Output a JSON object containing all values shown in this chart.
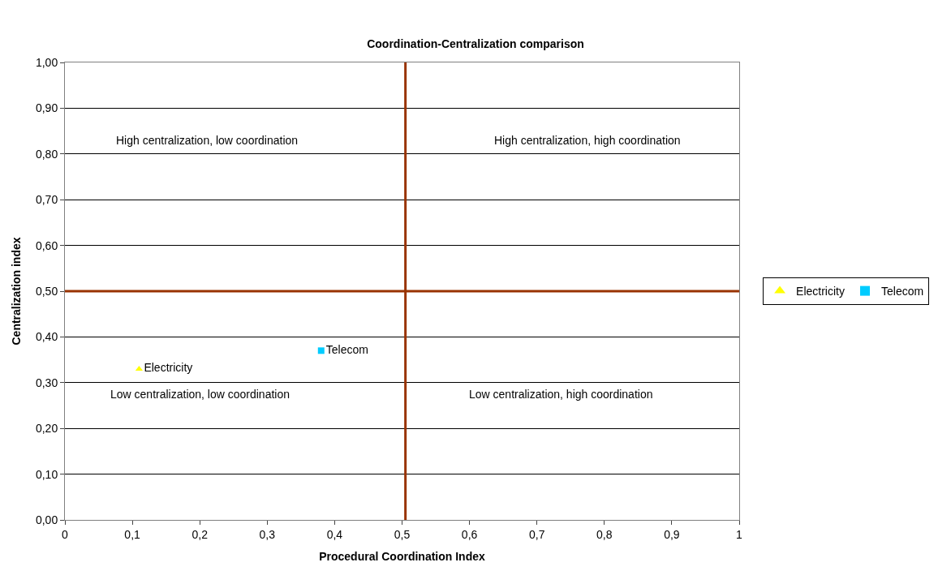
{
  "chart_data": {
    "type": "scatter",
    "title": "Coordination-Centralization comparison",
    "xlabel": "Procedural Coordination Index",
    "ylabel": "Centralization index",
    "xlim": [
      0,
      1
    ],
    "xticks": [
      0,
      {
        "value": 0.1,
        "label": "0,1"
      },
      {
        "value": 0.2,
        "label": "0,2"
      },
      {
        "value": 0.3,
        "label": "0,3"
      },
      {
        "value": 0.4,
        "label": "0,4"
      },
      {
        "value": 0.5,
        "label": "0,5"
      },
      {
        "value": 0.6,
        "label": "0,6"
      },
      {
        "value": 0.7,
        "label": "0,7"
      },
      {
        "value": 0.8,
        "label": "0,8"
      },
      {
        "value": 0.9,
        "label": "0,9"
      },
      1
    ],
    "ylim": [
      0,
      1
    ],
    "yticks": [
      {
        "value": 0,
        "label": "0,00"
      },
      {
        "value": 0.1,
        "label": "0,10"
      },
      {
        "value": 0.2,
        "label": "0,20"
      },
      {
        "value": 0.3,
        "label": "0,30"
      },
      {
        "value": 0.4,
        "label": "0,40"
      },
      {
        "value": 0.5,
        "label": "0,50"
      },
      {
        "value": 0.6,
        "label": "0,60"
      },
      {
        "value": 0.7,
        "label": "0,70"
      },
      {
        "value": 0.8,
        "label": "0,80"
      },
      {
        "value": 0.9,
        "label": "0,90"
      },
      {
        "value": 1,
        "label": "1,00"
      }
    ],
    "series": [
      {
        "name": "Electricity",
        "color": "#ffff00",
        "marker": "triangle",
        "x": [
          0.11
        ],
        "values": [
          0.33
        ]
      },
      {
        "name": "Telecom",
        "color": "#00ccff",
        "marker": "square",
        "x": [
          0.38
        ],
        "values": [
          0.37
        ]
      }
    ],
    "ref_lines": [
      {
        "axis": "x",
        "value": 0.505,
        "color": "#993300"
      },
      {
        "axis": "y",
        "value": 0.5,
        "color": "#993300"
      }
    ],
    "annotations": [
      "High centralization, low coordination",
      "High centralization, high coordination",
      "Low centralization, low coordination",
      "Low centralization, high coordination"
    ],
    "grid": "y",
    "legend": "right"
  }
}
